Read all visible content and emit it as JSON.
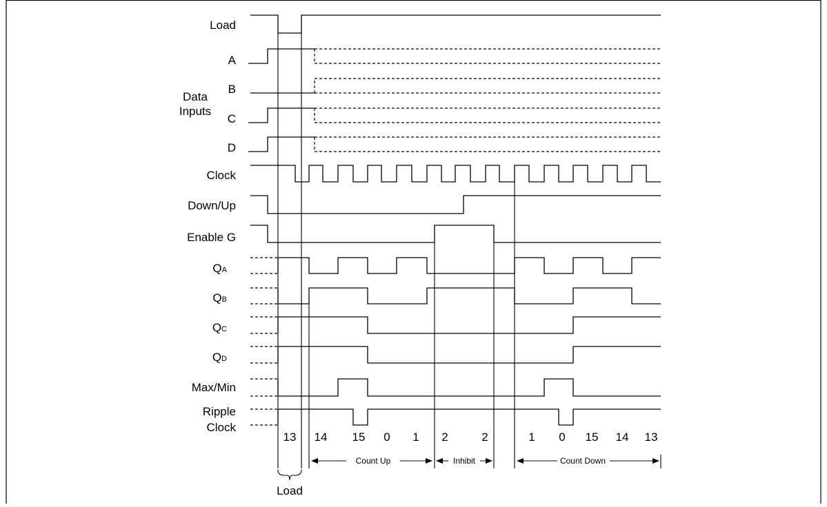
{
  "signals": {
    "load": "Load",
    "a": "A",
    "b": "B",
    "c": "C",
    "d": "D",
    "data_inputs_1": "Data",
    "data_inputs_2": "Inputs",
    "clock": "Clock",
    "down_up": "Down/Up",
    "enable_g": "Enable G",
    "qa_main": "Q",
    "qa_sub": "A",
    "qb_main": "Q",
    "qb_sub": "B",
    "qc_main": "Q",
    "qc_sub": "C",
    "qd_main": "Q",
    "qd_sub": "D",
    "max_min": "Max/Min",
    "ripple_1": "Ripple",
    "ripple_2": "Clock"
  },
  "count_values": [
    "13",
    "14",
    "15",
    "0",
    "1",
    "2",
    "2",
    "1",
    "0",
    "15",
    "14",
    "13"
  ],
  "phases": {
    "count_up": "Count Up",
    "inhibit": "Inhibit",
    "count_down": "Count Down",
    "load": "Load"
  }
}
